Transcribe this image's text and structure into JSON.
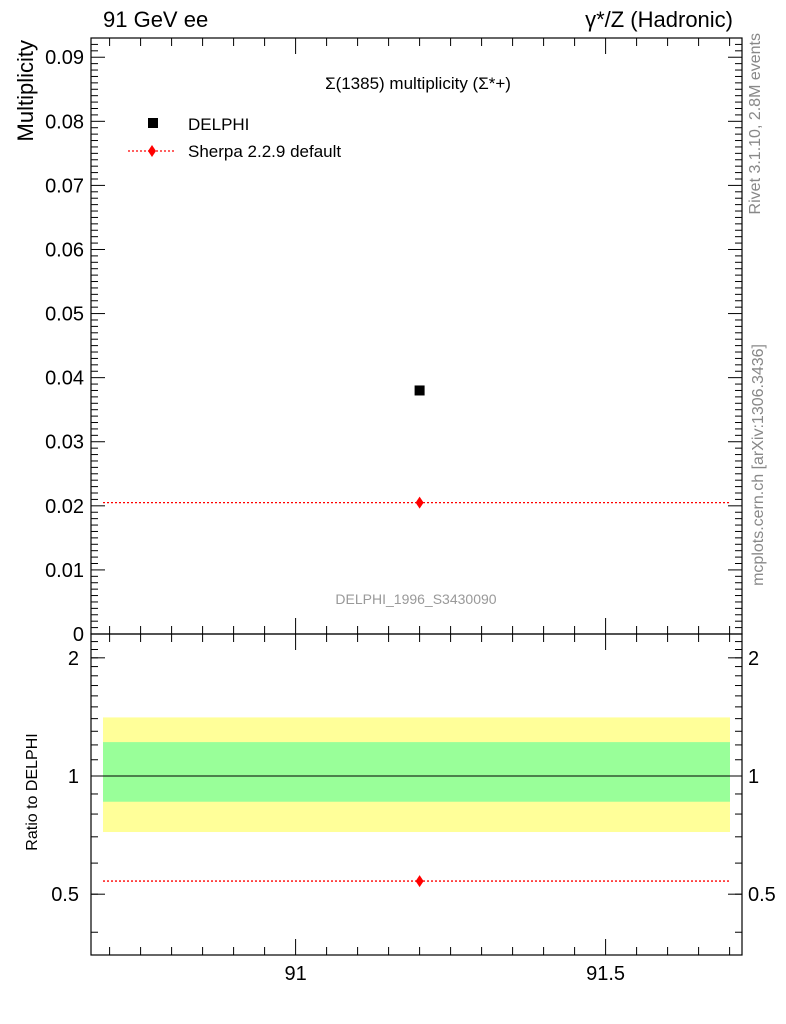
{
  "header": {
    "left": "91 GeV ee",
    "right": "γ*/Z (Hadronic)"
  },
  "side_labels": {
    "rivet": "Rivet 3.1.10,  2.8M events",
    "mcplots": "mcplots.cern.ch [arXiv:1306.3436]"
  },
  "analysis_tag": "DELPHI_1996_S3430090",
  "colors": {
    "data": "#000000",
    "mc": "#ff0000",
    "band_inner": "#99ff99",
    "band_outer": "#ffff99"
  },
  "chart_data": [
    {
      "type": "scatter",
      "panel": "main",
      "title": "Σ(1385) multiplicity (Σ*+)",
      "ylabel": "Multiplicity",
      "xlim": [
        90.67,
        91.72
      ],
      "ylim": [
        0,
        0.093
      ],
      "yticks": [
        "0",
        "0.01",
        "0.02",
        "0.03",
        "0.04",
        "0.05",
        "0.06",
        "0.07",
        "0.08",
        "0.09"
      ],
      "legend_position": "top-left",
      "series": [
        {
          "name": "DELPHI",
          "marker": "square",
          "x": [
            91.2
          ],
          "y": [
            0.038
          ]
        },
        {
          "name": "Sherpa 2.2.9 default",
          "marker": "diamond",
          "style": "dotted",
          "x": [
            91.2
          ],
          "y": [
            0.0205
          ]
        }
      ]
    },
    {
      "type": "line",
      "panel": "ratio",
      "ylabel": "Ratio to DELPHI",
      "xlim": [
        90.67,
        91.72
      ],
      "ylim": [
        0.35,
        2.3
      ],
      "xticks": [
        "91",
        "91.5"
      ],
      "yticks": [
        "0.5",
        "1",
        "2"
      ],
      "bands": {
        "inner": [
          0.86,
          1.22
        ],
        "outer": [
          0.72,
          1.41
        ]
      },
      "series": [
        {
          "name": "Sherpa 2.2.9 default",
          "x": [
            91.2
          ],
          "y": [
            0.54
          ]
        }
      ]
    }
  ]
}
